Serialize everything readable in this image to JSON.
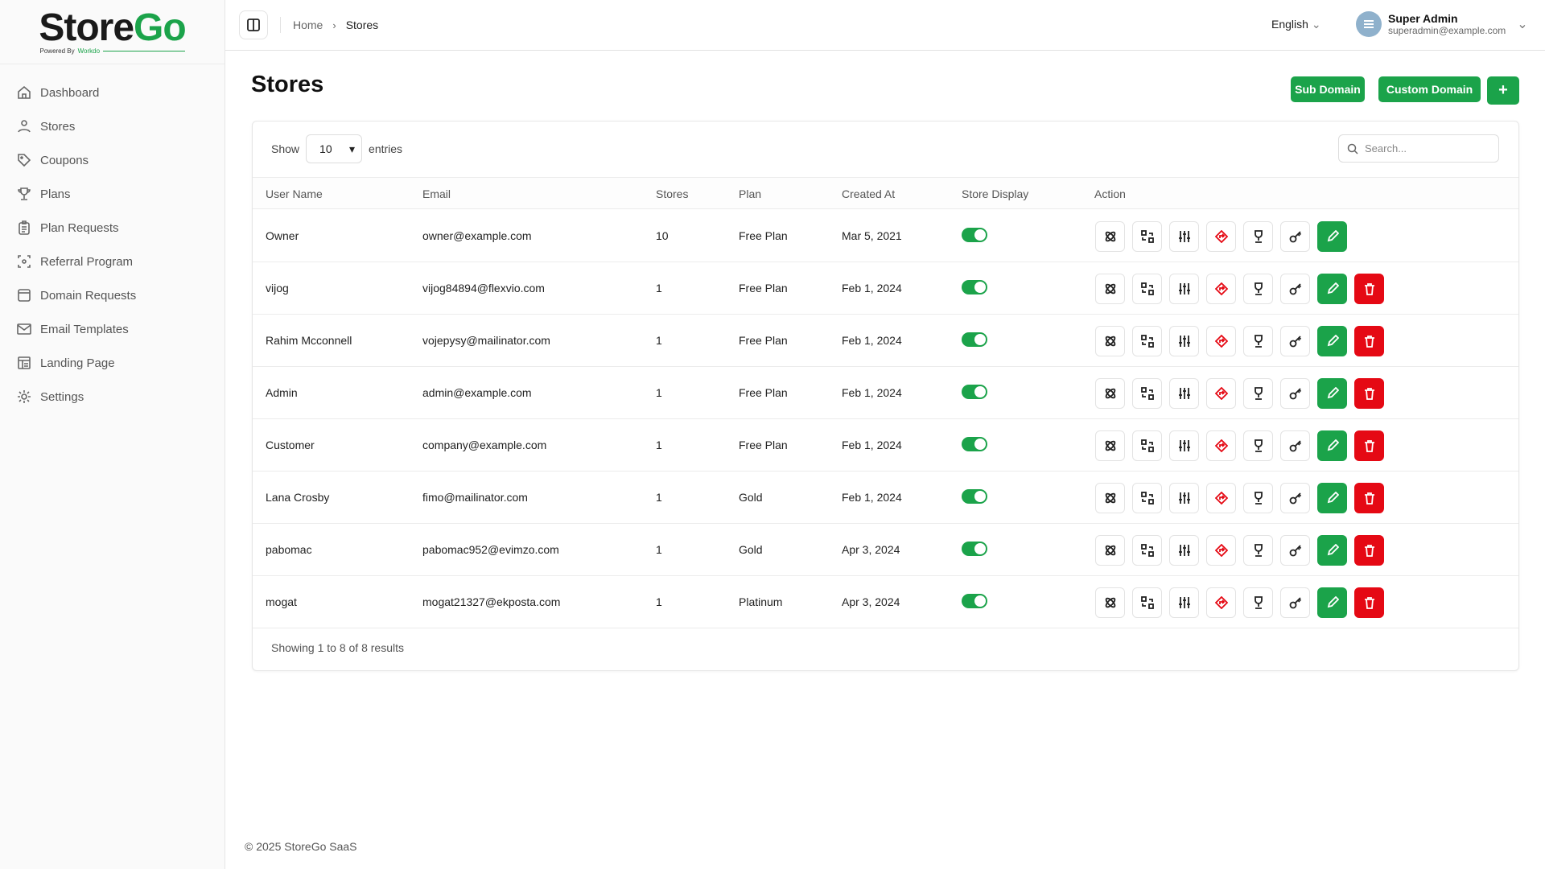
{
  "brand": {
    "name_part1": "Store",
    "name_part2": "Go",
    "tagline": "Powered By",
    "tagline_brand": "Workdo",
    "green": "#1ba34a",
    "red": "#e50914"
  },
  "sidebar": {
    "items": [
      {
        "label": "Dashboard",
        "icon": "home-icon"
      },
      {
        "label": "Stores",
        "icon": "user-icon"
      },
      {
        "label": "Coupons",
        "icon": "tag-icon"
      },
      {
        "label": "Plans",
        "icon": "trophy-icon"
      },
      {
        "label": "Plan Requests",
        "icon": "clipboard-icon"
      },
      {
        "label": "Referral Program",
        "icon": "referral-icon"
      },
      {
        "label": "Domain Requests",
        "icon": "browser-icon"
      },
      {
        "label": "Email Templates",
        "icon": "mail-icon"
      },
      {
        "label": "Landing Page",
        "icon": "layout-icon"
      },
      {
        "label": "Settings",
        "icon": "gear-icon"
      }
    ]
  },
  "header": {
    "breadcrumb": [
      "Home",
      "Stores"
    ],
    "language": "English",
    "user_name": "Super Admin",
    "user_email": "superadmin@example.com"
  },
  "page": {
    "title": "Stores",
    "sub_domain": "Sub Domain",
    "custom_domain": "Custom Domain",
    "add": "+"
  },
  "table": {
    "show_label": "Show",
    "entries_label": "entries",
    "page_size": "10",
    "search_placeholder": "Search...",
    "columns": [
      "User Name",
      "Email",
      "Stores",
      "Plan",
      "Created At",
      "Store Display",
      "Action"
    ],
    "rows": [
      {
        "name": "Owner",
        "email": "owner@example.com",
        "stores": "10",
        "plan": "Free Plan",
        "created": "Mar 5, 2021",
        "display": true,
        "deletable": false
      },
      {
        "name": "vijog",
        "email": "vijog84894@flexvio.com",
        "stores": "1",
        "plan": "Free Plan",
        "created": "Feb 1, 2024",
        "display": true,
        "deletable": true
      },
      {
        "name": "Rahim Mcconnell",
        "email": "vojepysy@mailinator.com",
        "stores": "1",
        "plan": "Free Plan",
        "created": "Feb 1, 2024",
        "display": true,
        "deletable": true
      },
      {
        "name": "Admin",
        "email": "admin@example.com",
        "stores": "1",
        "plan": "Free Plan",
        "created": "Feb 1, 2024",
        "display": true,
        "deletable": true
      },
      {
        "name": "Customer",
        "email": "company@example.com",
        "stores": "1",
        "plan": "Free Plan",
        "created": "Feb 1, 2024",
        "display": true,
        "deletable": true
      },
      {
        "name": "Lana Crosby",
        "email": "fimo@mailinator.com",
        "stores": "1",
        "plan": "Gold",
        "created": "Feb 1, 2024",
        "display": true,
        "deletable": true
      },
      {
        "name": "pabomac",
        "email": "pabomac952@evimzo.com",
        "stores": "1",
        "plan": "Gold",
        "created": "Apr 3, 2024",
        "display": true,
        "deletable": true
      },
      {
        "name": "mogat",
        "email": "mogat21327@ekposta.com",
        "stores": "1",
        "plan": "Platinum",
        "created": "Apr 3, 2024",
        "display": true,
        "deletable": true
      }
    ],
    "actions": [
      "atom-icon",
      "swap-icon",
      "sliders-icon",
      "direction-icon",
      "trophy-icon",
      "key-icon",
      "edit-icon",
      "trash-icon"
    ],
    "footer": "Showing 1 to 8 of 8 results"
  },
  "copyright": "© 2025 StoreGo SaaS"
}
